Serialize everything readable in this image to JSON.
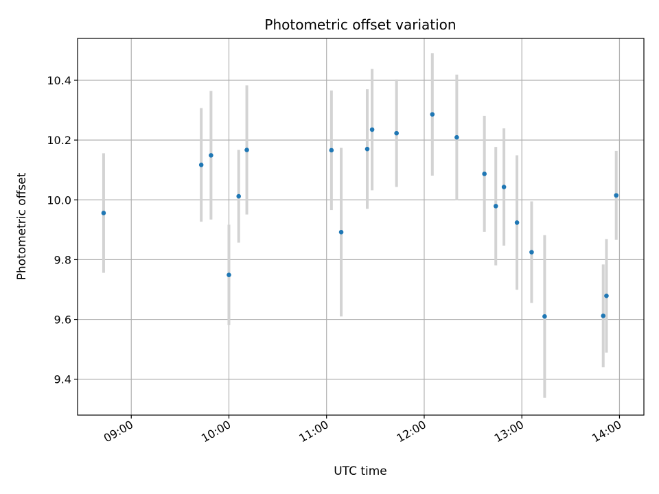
{
  "chart_data": {
    "type": "scatter",
    "title": "Photometric offset variation",
    "xlabel": "UTC time",
    "ylabel": "Photometric offset",
    "x_ticks": [
      "09:00",
      "10:00",
      "11:00",
      "12:00",
      "13:00",
      "14:00"
    ],
    "y_ticks": [
      "9.4",
      "9.6",
      "9.8",
      "10.0",
      "10.2",
      "10.4"
    ],
    "grid": true,
    "marker_color": "#1f77b4",
    "errorbar_color": "#d3d3d3",
    "series": [
      {
        "points": [
          {
            "x": "08:43",
            "y": 9.956,
            "yerr": 0.2
          },
          {
            "x": "09:43",
            "y": 10.117,
            "yerr": 0.19
          },
          {
            "x": "09:49",
            "y": 10.149,
            "yerr": 0.215
          },
          {
            "x": "10:00",
            "y": 9.749,
            "yerr": 0.168
          },
          {
            "x": "10:06",
            "y": 10.012,
            "yerr": 0.155
          },
          {
            "x": "10:11",
            "y": 10.167,
            "yerr": 0.216
          },
          {
            "x": "11:03",
            "y": 10.166,
            "yerr": 0.2
          },
          {
            "x": "11:09",
            "y": 9.892,
            "yerr": 0.282
          },
          {
            "x": "11:25",
            "y": 10.17,
            "yerr": 0.2
          },
          {
            "x": "11:28",
            "y": 10.235,
            "yerr": 0.203
          },
          {
            "x": "11:43",
            "y": 10.223,
            "yerr": 0.18
          },
          {
            "x": "12:05",
            "y": 10.286,
            "yerr": 0.205
          },
          {
            "x": "12:20",
            "y": 10.209,
            "yerr": 0.21
          },
          {
            "x": "12:37",
            "y": 10.087,
            "yerr": 0.194
          },
          {
            "x": "12:44",
            "y": 9.979,
            "yerr": 0.198
          },
          {
            "x": "12:49",
            "y": 10.043,
            "yerr": 0.196
          },
          {
            "x": "12:57",
            "y": 9.924,
            "yerr": 0.225
          },
          {
            "x": "13:06",
            "y": 9.825,
            "yerr": 0.17
          },
          {
            "x": "13:14",
            "y": 9.61,
            "yerr": 0.272
          },
          {
            "x": "13:50",
            "y": 9.612,
            "yerr": 0.172
          },
          {
            "x": "13:52",
            "y": 9.679,
            "yerr": 0.19
          },
          {
            "x": "13:58",
            "y": 10.015,
            "yerr": 0.149
          }
        ]
      }
    ],
    "xlim": [
      "08:27",
      "14:15"
    ],
    "ylim": [
      9.28,
      10.54
    ]
  }
}
